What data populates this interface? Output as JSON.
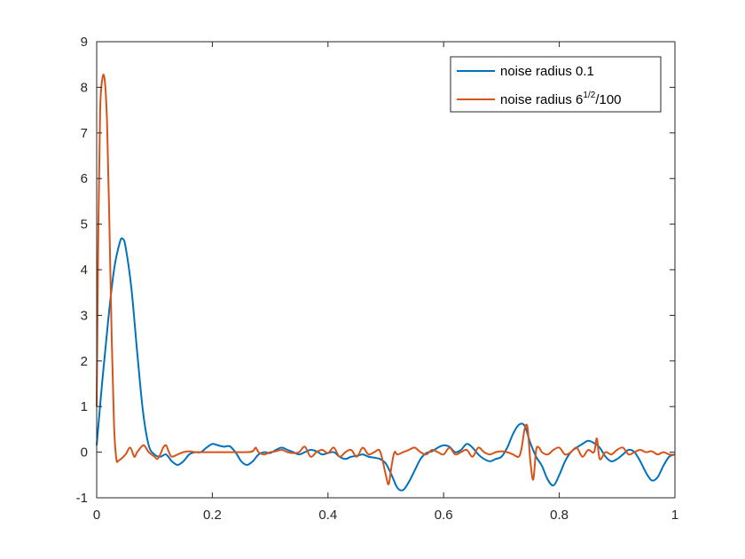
{
  "chart_data": {
    "type": "line",
    "xlim": [
      0,
      1
    ],
    "ylim": [
      -1,
      9
    ],
    "xticks": [
      0,
      0.2,
      0.4,
      0.6,
      0.8,
      1
    ],
    "xtick_labels": [
      "0",
      "0.2",
      "0.4",
      "0.6",
      "0.8",
      "1"
    ],
    "yticks": [
      -1,
      0,
      1,
      2,
      3,
      4,
      5,
      6,
      7,
      8,
      9
    ],
    "ytick_labels": [
      "-1",
      "0",
      "1",
      "2",
      "3",
      "4",
      "5",
      "6",
      "7",
      "8",
      "9"
    ],
    "grid": false,
    "legend_position": "top-right",
    "series": [
      {
        "name_base": "noise radius 0.1",
        "color": "#0072BD",
        "x": [
          0,
          0.01,
          0.02,
          0.03,
          0.04,
          0.045,
          0.05,
          0.06,
          0.07,
          0.08,
          0.09,
          0.1,
          0.11,
          0.12,
          0.13,
          0.14,
          0.15,
          0.16,
          0.17,
          0.18,
          0.19,
          0.2,
          0.21,
          0.22,
          0.23,
          0.24,
          0.25,
          0.26,
          0.27,
          0.28,
          0.29,
          0.3,
          0.31,
          0.32,
          0.33,
          0.34,
          0.35,
          0.36,
          0.37,
          0.38,
          0.39,
          0.4,
          0.41,
          0.42,
          0.43,
          0.44,
          0.45,
          0.46,
          0.47,
          0.48,
          0.49,
          0.5,
          0.51,
          0.52,
          0.53,
          0.54,
          0.55,
          0.56,
          0.57,
          0.58,
          0.59,
          0.6,
          0.61,
          0.62,
          0.63,
          0.64,
          0.65,
          0.66,
          0.67,
          0.68,
          0.69,
          0.7,
          0.71,
          0.72,
          0.73,
          0.74,
          0.75,
          0.76,
          0.77,
          0.78,
          0.79,
          0.8,
          0.81,
          0.82,
          0.83,
          0.84,
          0.85,
          0.86,
          0.87,
          0.88,
          0.89,
          0.9,
          0.91,
          0.92,
          0.93,
          0.94,
          0.95,
          0.96,
          0.97,
          0.98,
          0.99,
          1.0
        ],
        "y": [
          0.15,
          1.6,
          2.9,
          4.0,
          4.6,
          4.68,
          4.5,
          3.6,
          2.2,
          0.9,
          0.15,
          -0.05,
          -0.1,
          -0.05,
          -0.2,
          -0.28,
          -0.2,
          -0.05,
          0.0,
          0.0,
          0.1,
          0.18,
          0.15,
          0.12,
          0.13,
          0.0,
          -0.2,
          -0.28,
          -0.2,
          -0.05,
          0.0,
          -0.02,
          0.05,
          0.1,
          0.05,
          0.0,
          -0.05,
          0.0,
          0.05,
          0.02,
          -0.05,
          -0.02,
          0.0,
          -0.1,
          -0.15,
          -0.1,
          -0.08,
          -0.05,
          -0.1,
          -0.12,
          -0.15,
          -0.25,
          -0.5,
          -0.78,
          -0.83,
          -0.65,
          -0.4,
          -0.15,
          -0.02,
          0.02,
          0.1,
          0.15,
          0.12,
          0.0,
          0.05,
          0.18,
          0.1,
          -0.05,
          -0.15,
          -0.2,
          -0.15,
          -0.1,
          0.1,
          0.4,
          0.6,
          0.58,
          0.2,
          -0.1,
          -0.3,
          -0.6,
          -0.73,
          -0.5,
          -0.2,
          0.0,
          0.1,
          0.18,
          0.25,
          0.2,
          0.1,
          -0.1,
          -0.2,
          -0.15,
          -0.05,
          0.05,
          0.0,
          -0.2,
          -0.45,
          -0.62,
          -0.55,
          -0.3,
          -0.1,
          -0.05
        ]
      },
      {
        "name_base": "noise radius 6",
        "name_sup": "1/2",
        "name_tail": "/100",
        "color": "#D95319",
        "x": [
          0,
          0.003,
          0.006,
          0.01,
          0.014,
          0.018,
          0.022,
          0.026,
          0.03,
          0.034,
          0.038,
          0.042,
          0.05,
          0.058,
          0.065,
          0.07,
          0.08,
          0.085,
          0.09,
          0.1,
          0.105,
          0.11,
          0.115,
          0.12,
          0.125,
          0.13,
          0.14,
          0.15,
          0.16,
          0.17,
          0.18,
          0.2,
          0.22,
          0.24,
          0.26,
          0.27,
          0.275,
          0.28,
          0.29,
          0.3,
          0.31,
          0.32,
          0.33,
          0.34,
          0.35,
          0.36,
          0.37,
          0.38,
          0.39,
          0.4,
          0.41,
          0.42,
          0.43,
          0.44,
          0.45,
          0.46,
          0.47,
          0.48,
          0.49,
          0.5,
          0.505,
          0.51,
          0.515,
          0.52,
          0.53,
          0.54,
          0.55,
          0.56,
          0.57,
          0.58,
          0.59,
          0.6,
          0.61,
          0.62,
          0.63,
          0.64,
          0.65,
          0.66,
          0.67,
          0.68,
          0.69,
          0.7,
          0.71,
          0.72,
          0.73,
          0.735,
          0.74,
          0.745,
          0.75,
          0.755,
          0.76,
          0.765,
          0.77,
          0.78,
          0.79,
          0.8,
          0.81,
          0.82,
          0.83,
          0.84,
          0.85,
          0.86,
          0.865,
          0.87,
          0.88,
          0.89,
          0.9,
          0.91,
          0.92,
          0.93,
          0.94,
          0.95,
          0.96,
          0.97,
          0.98,
          0.99,
          1.0
        ],
        "y": [
          1.0,
          5.0,
          7.5,
          8.2,
          8.15,
          7.2,
          5.0,
          2.5,
          0.6,
          -0.15,
          -0.18,
          -0.15,
          -0.05,
          0.1,
          -0.1,
          0.0,
          0.15,
          0.1,
          0.0,
          -0.1,
          -0.15,
          -0.05,
          0.1,
          0.15,
          0.0,
          -0.1,
          -0.05,
          0.0,
          0.02,
          0.0,
          0.0,
          0.0,
          0.0,
          0.0,
          0.0,
          0.02,
          0.1,
          0.0,
          -0.05,
          0.0,
          0.02,
          0.05,
          0.0,
          -0.02,
          0.0,
          0.12,
          -0.1,
          0.0,
          0.05,
          -0.02,
          0.1,
          -0.1,
          0.0,
          0.05,
          -0.1,
          0.1,
          -0.05,
          0.0,
          0.02,
          -0.5,
          -0.7,
          -0.3,
          0.0,
          -0.05,
          0.0,
          0.05,
          0.1,
          0.0,
          -0.05,
          0.05,
          0.0,
          -0.05,
          0.1,
          -0.05,
          0.0,
          0.05,
          -0.1,
          0.1,
          0.0,
          -0.05,
          0.0,
          0.02,
          0.0,
          -0.05,
          -0.1,
          0.1,
          0.5,
          0.55,
          -0.2,
          -0.6,
          0.05,
          0.1,
          0.0,
          -0.05,
          0.05,
          0.1,
          -0.05,
          0.0,
          0.1,
          -0.1,
          0.05,
          0.0,
          0.3,
          -0.15,
          0.0,
          -0.05,
          0.05,
          0.1,
          -0.05,
          0.0,
          0.05,
          0.0,
          0.02,
          -0.05,
          0.0,
          -0.05,
          -0.05
        ]
      }
    ]
  }
}
